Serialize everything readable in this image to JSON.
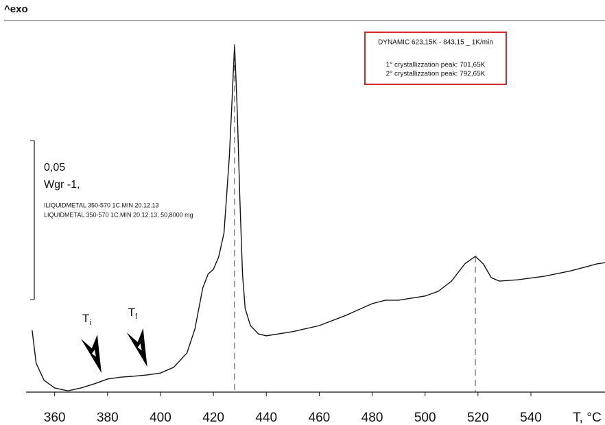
{
  "chart_data": {
    "type": "line",
    "exo_label": "^exo",
    "xlabel": "T, °C",
    "x": [
      351.5,
      353,
      356,
      360,
      365,
      370,
      375,
      380,
      385,
      390,
      395,
      400,
      405,
      410,
      413,
      416,
      418,
      420,
      422,
      424,
      426,
      427,
      428,
      429,
      430,
      431,
      432,
      434,
      437,
      440,
      450,
      460,
      470,
      480,
      485,
      490,
      500,
      505,
      510,
      515,
      519,
      522,
      525,
      528,
      535,
      545,
      555,
      565,
      568
    ],
    "series": [
      {
        "color": "#111111",
        "values": [
          0.0194,
          0.0091,
          0.0037,
          0.0013,
          0.0004,
          0.0013,
          0.0026,
          0.0041,
          0.0047,
          0.005,
          0.0054,
          0.006,
          0.0078,
          0.0123,
          0.0198,
          0.0328,
          0.0371,
          0.0386,
          0.0425,
          0.05,
          0.0737,
          0.0909,
          0.1093,
          0.0888,
          0.0608,
          0.0371,
          0.0263,
          0.0209,
          0.0183,
          0.0177,
          0.019,
          0.0209,
          0.0241,
          0.0278,
          0.0289,
          0.0289,
          0.0302,
          0.0317,
          0.0349,
          0.0403,
          0.0427,
          0.0403,
          0.036,
          0.0349,
          0.0353,
          0.0364,
          0.0381,
          0.0403,
          0.0407
        ]
      }
    ],
    "xlim": [
      349.2,
      568
    ],
    "ylim": [
      0,
      0.1168
    ],
    "xticks": [
      360,
      380,
      400,
      420,
      440,
      460,
      480,
      500,
      520,
      540
    ],
    "peaks": [
      428,
      519
    ],
    "scale_bar": {
      "value": 0.05,
      "label": "0,05"
    },
    "scale_unit": "Wgr -1,",
    "sample_lines": [
      "ILIQUIDMETAL 350-570 1C.MIN 20.12.13",
      "LIQUIDMETAL 350-570 1C.MIN 20.12.13, 50,8000 mg"
    ],
    "info_box": [
      "DYNAMIC 623,15K - 843,15 _ 1K/min",
      "1° crystallizzation peak: 701,65K",
      "2° crystallizzation peak: 792,65K"
    ],
    "info_box_color": "#d62828",
    "markers": [
      {
        "text": "T",
        "sub": "i",
        "x": 377.7
      },
      {
        "text": "T",
        "sub": "f",
        "x": 395
      }
    ]
  }
}
